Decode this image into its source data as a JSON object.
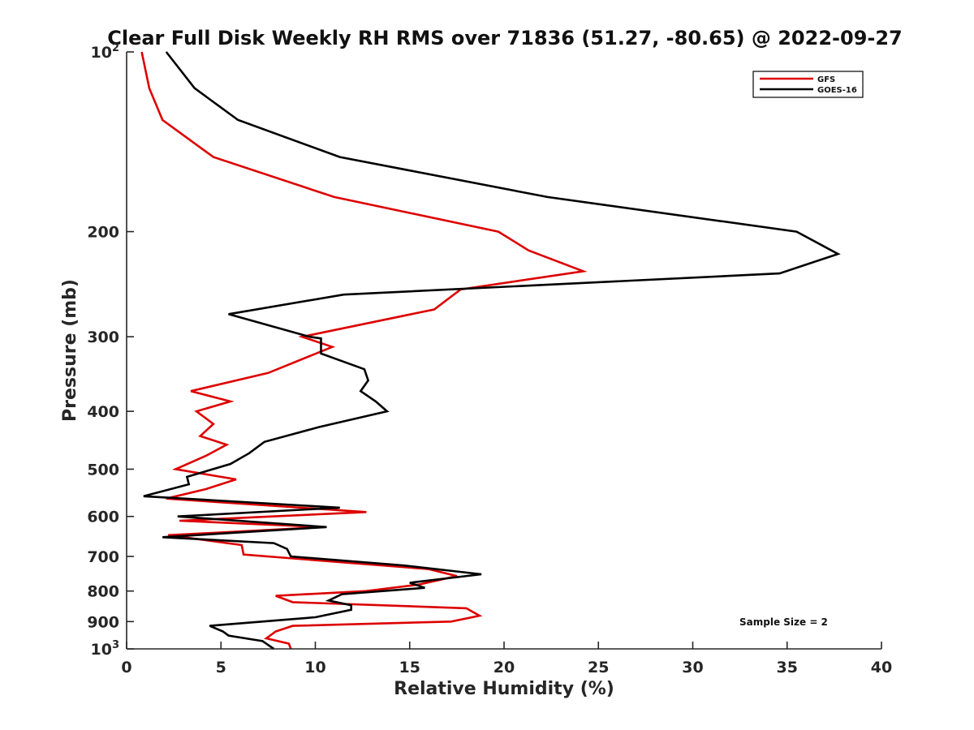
{
  "chart_data": {
    "type": "line",
    "title": "Clear Full Disk Weekly RH RMS over 71836 (51.27, -80.65) @ 2022-09-27",
    "xlabel": "Relative Humidity (%)",
    "ylabel": "Pressure (mb)",
    "xlim": [
      0,
      40
    ],
    "ylim": [
      100,
      1000
    ],
    "y_scale": "log",
    "y_reversed": true,
    "x_ticks": [
      0,
      5,
      10,
      15,
      20,
      25,
      30,
      35,
      40
    ],
    "x_tick_labels": [
      "0",
      "5",
      "10",
      "15",
      "20",
      "25",
      "30",
      "35",
      "40"
    ],
    "y_ticks": [
      {
        "value": 100,
        "base": "10",
        "exp": "2"
      },
      {
        "value": 200,
        "label": "200"
      },
      {
        "value": 300,
        "label": "300"
      },
      {
        "value": 400,
        "label": "400"
      },
      {
        "value": 500,
        "label": "500"
      },
      {
        "value": 600,
        "label": "600"
      },
      {
        "value": 700,
        "label": "700"
      },
      {
        "value": 800,
        "label": "800"
      },
      {
        "value": 900,
        "label": "900"
      },
      {
        "value": 1000,
        "base": "10",
        "exp": "3"
      }
    ],
    "legend_position": "top-right",
    "annotation": "Sample Size = 2",
    "series": [
      {
        "name": "GFS",
        "color": "#dd0000",
        "points": [
          [
            0.8,
            100
          ],
          [
            1.2,
            115
          ],
          [
            1.9,
            130
          ],
          [
            4.6,
            150
          ],
          [
            11.0,
            175
          ],
          [
            19.7,
            200
          ],
          [
            21.3,
            215
          ],
          [
            24.2,
            233
          ],
          [
            17.7,
            250
          ],
          [
            16.3,
            270
          ],
          [
            9.3,
            300
          ],
          [
            10.9,
            312
          ],
          [
            7.5,
            345
          ],
          [
            3.4,
            370
          ],
          [
            5.5,
            385
          ],
          [
            3.7,
            400
          ],
          [
            4.6,
            420
          ],
          [
            3.9,
            440
          ],
          [
            5.3,
            455
          ],
          [
            4.2,
            475
          ],
          [
            2.6,
            500
          ],
          [
            5.8,
            520
          ],
          [
            4.2,
            540
          ],
          [
            2.1,
            560
          ],
          [
            12.7,
            590
          ],
          [
            2.8,
            610
          ],
          [
            10.5,
            625
          ],
          [
            2.2,
            645
          ],
          [
            6.1,
            670
          ],
          [
            6.2,
            695
          ],
          [
            16.0,
            735
          ],
          [
            17.5,
            755
          ],
          [
            15.5,
            780
          ],
          [
            12.7,
            800
          ],
          [
            7.9,
            815
          ],
          [
            8.8,
            835
          ],
          [
            18.0,
            855
          ],
          [
            18.7,
            880
          ],
          [
            17.2,
            900
          ],
          [
            8.8,
            915
          ],
          [
            7.9,
            935
          ],
          [
            7.4,
            960
          ],
          [
            8.6,
            980
          ],
          [
            8.7,
            1000
          ]
        ]
      },
      {
        "name": "GOES-16",
        "color": "#000000",
        "points": [
          [
            2.1,
            100
          ],
          [
            3.6,
            115
          ],
          [
            5.9,
            130
          ],
          [
            11.3,
            150
          ],
          [
            22.3,
            175
          ],
          [
            35.5,
            200
          ],
          [
            37.7,
            218
          ],
          [
            34.6,
            235
          ],
          [
            11.5,
            255
          ],
          [
            5.4,
            275
          ],
          [
            9.7,
            300
          ],
          [
            10.3,
            302
          ],
          [
            10.3,
            320
          ],
          [
            12.6,
            340
          ],
          [
            12.8,
            355
          ],
          [
            12.4,
            370
          ],
          [
            13.2,
            385
          ],
          [
            13.8,
            400
          ],
          [
            10.2,
            425
          ],
          [
            7.3,
            450
          ],
          [
            6.5,
            470
          ],
          [
            5.5,
            490
          ],
          [
            3.2,
            515
          ],
          [
            3.3,
            530
          ],
          [
            0.9,
            555
          ],
          [
            11.3,
            580
          ],
          [
            2.7,
            600
          ],
          [
            10.6,
            625
          ],
          [
            1.9,
            650
          ],
          [
            7.8,
            665
          ],
          [
            8.5,
            680
          ],
          [
            8.7,
            700
          ],
          [
            14.7,
            725
          ],
          [
            18.8,
            750
          ],
          [
            15.0,
            775
          ],
          [
            15.8,
            790
          ],
          [
            11.4,
            810
          ],
          [
            10.7,
            830
          ],
          [
            11.9,
            845
          ],
          [
            11.9,
            860
          ],
          [
            10.0,
            885
          ],
          [
            4.4,
            915
          ],
          [
            5.1,
            935
          ],
          [
            5.4,
            950
          ],
          [
            7.2,
            970
          ],
          [
            7.8,
            1000
          ]
        ]
      }
    ]
  }
}
